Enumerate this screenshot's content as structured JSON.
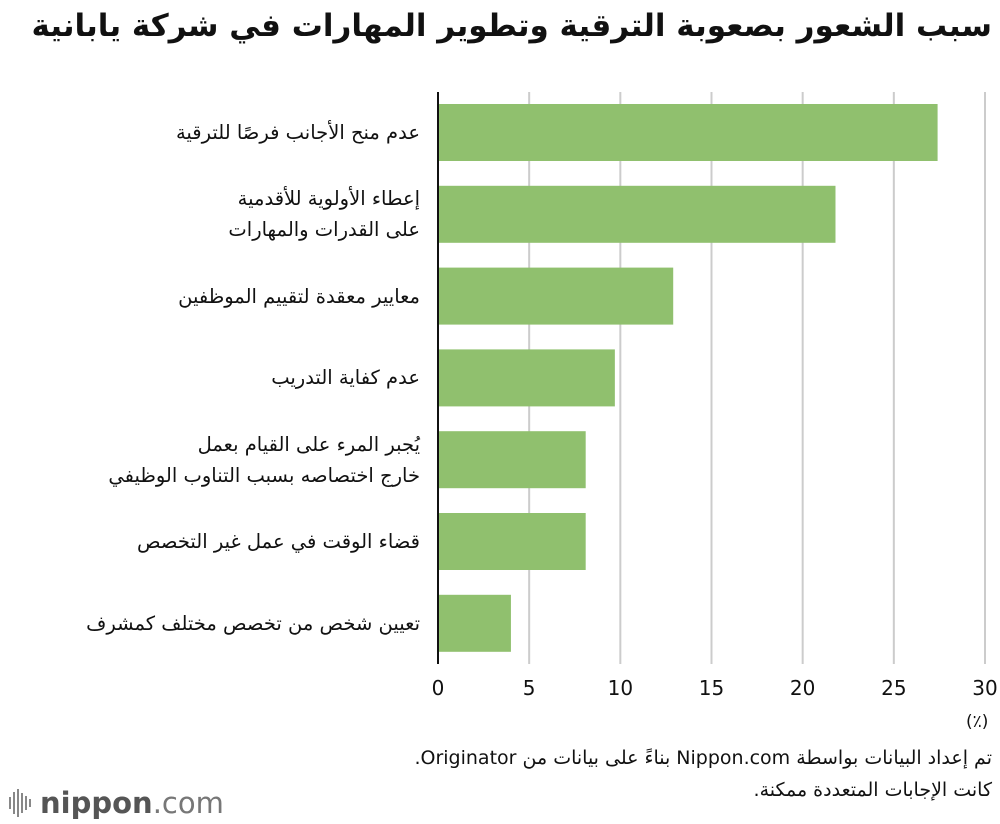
{
  "chart_data": {
    "type": "bar",
    "orientation": "horizontal",
    "title": "سبب الشعور بصعوبة الترقية وتطوير المهارات في شركة يابانية",
    "categories": [
      [
        "عدم منح الأجانب فرصًا للترقية"
      ],
      [
        "إعطاء الأولوية للأقدمية",
        "على القدرات والمهارات"
      ],
      [
        "معايير معقدة لتقييم الموظفين"
      ],
      [
        "عدم كفاية التدريب"
      ],
      [
        "يُجبر المرء على القيام بعمل",
        "خارج اختصاصه بسبب التناوب الوظيفي"
      ],
      [
        "قضاء الوقت في عمل غير التخصص"
      ],
      [
        "تعيين شخص من تخصص مختلف كمشرف"
      ]
    ],
    "values": [
      27.4,
      21.8,
      12.9,
      9.7,
      8.1,
      8.1,
      4.0
    ],
    "xlim": [
      0,
      30
    ],
    "xticks": [
      0,
      5,
      10,
      15,
      20,
      25,
      30
    ],
    "unit_label": "(٪)",
    "grid": true,
    "bar_color": "#90c06e",
    "grid_color": "#cccccc",
    "axis_color": "#111111"
  },
  "footnotes": [
    "تم إعداد البيانات بواسطة Nippon.com بناءً على بيانات من Originator.",
    "كانت الإجابات المتعددة ممكنة."
  ],
  "brand": {
    "name_strong": "nippon",
    "name_light": ".com",
    "logo_icon": "waveform-bars-icon"
  }
}
